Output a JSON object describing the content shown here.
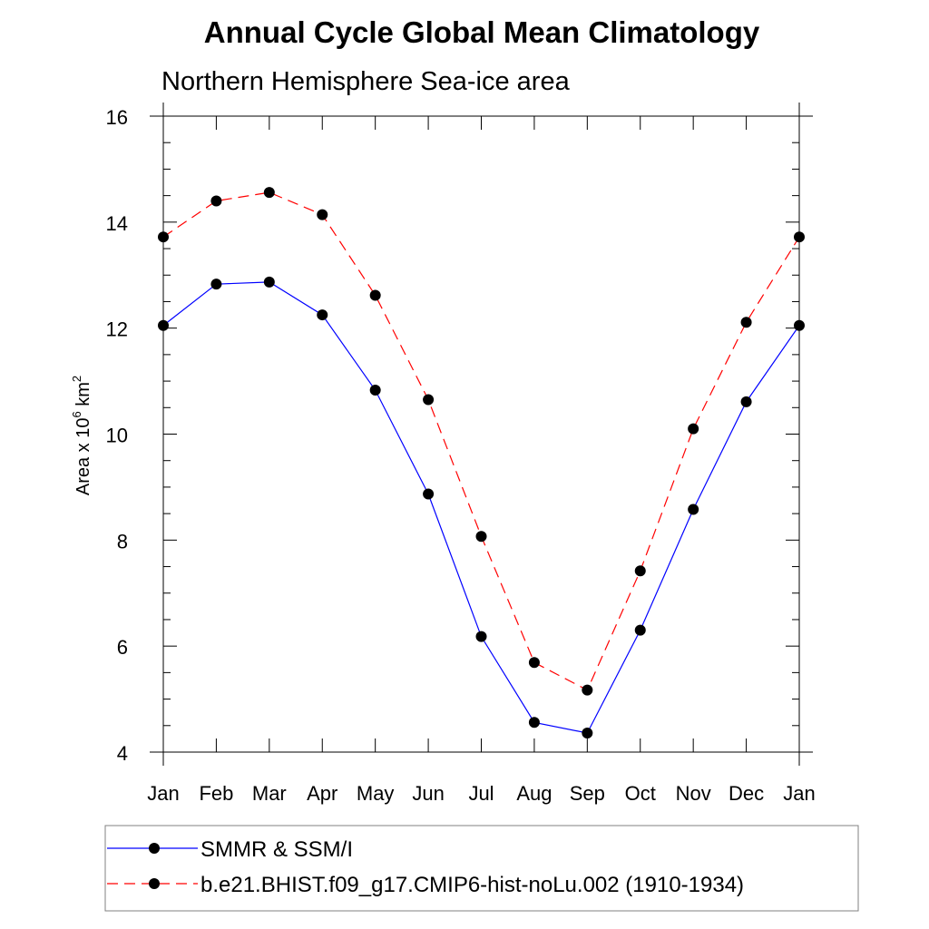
{
  "chart_data": {
    "type": "line",
    "title": "Annual Cycle Global Mean Climatology",
    "subtitle": "Northern Hemisphere Sea-ice area",
    "ylabel": {
      "prefix": "Area x 10",
      "exponent": "6",
      "unit": " km",
      "unit_exponent": "2"
    },
    "categories": [
      "Jan",
      "Feb",
      "Mar",
      "Apr",
      "May",
      "Jun",
      "Jul",
      "Aug",
      "Sep",
      "Oct",
      "Nov",
      "Dec",
      "Jan"
    ],
    "ylim": [
      4,
      16
    ],
    "yticks": [
      4,
      6,
      8,
      10,
      12,
      14,
      16
    ],
    "grid": false,
    "legend_position": "bottom",
    "series": [
      {
        "name": "SMMR & SSM/I",
        "color": "#0000ff",
        "line_style": "solid",
        "marker": "filled-circle",
        "values": [
          12.05,
          12.83,
          12.87,
          12.25,
          10.83,
          8.87,
          6.18,
          4.56,
          4.36,
          6.3,
          8.58,
          10.61,
          12.05
        ]
      },
      {
        "name": "b.e21.BHIST.f09_g17.CMIP6-hist-noLu.002 (1910-1934)",
        "color": "#ff0000",
        "line_style": "dashed",
        "marker": "filled-circle",
        "values": [
          13.72,
          14.4,
          14.56,
          14.14,
          12.62,
          10.65,
          8.07,
          5.69,
          5.17,
          7.42,
          10.1,
          12.11,
          13.72
        ]
      }
    ]
  }
}
